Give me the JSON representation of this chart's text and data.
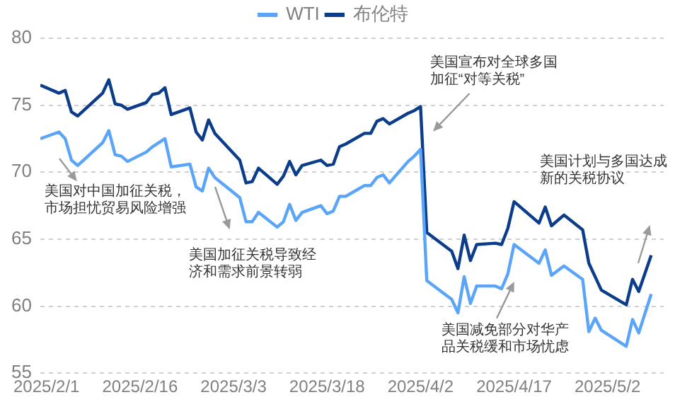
{
  "chart_data": {
    "type": "line",
    "x": [
      "2025-01-31",
      "2025-02-03",
      "2025-02-04",
      "2025-02-05",
      "2025-02-06",
      "2025-02-10",
      "2025-02-11",
      "2025-02-12",
      "2025-02-13",
      "2025-02-14",
      "2025-02-17",
      "2025-02-18",
      "2025-02-19",
      "2025-02-20",
      "2025-02-21",
      "2025-02-24",
      "2025-02-25",
      "2025-02-26",
      "2025-02-27",
      "2025-02-28",
      "2025-03-04",
      "2025-03-05",
      "2025-03-06",
      "2025-03-07",
      "2025-03-10",
      "2025-03-11",
      "2025-03-12",
      "2025-03-13",
      "2025-03-14",
      "2025-03-17",
      "2025-03-18",
      "2025-03-19",
      "2025-03-20",
      "2025-03-21",
      "2025-03-24",
      "2025-03-25",
      "2025-03-26",
      "2025-03-27",
      "2025-03-28",
      "2025-03-31",
      "2025-04-01",
      "2025-04-02",
      "2025-04-03",
      "2025-04-07",
      "2025-04-08",
      "2025-04-09",
      "2025-04-10",
      "2025-04-11",
      "2025-04-14",
      "2025-04-15",
      "2025-04-16",
      "2025-04-17",
      "2025-04-21",
      "2025-04-22",
      "2025-04-23",
      "2025-04-25",
      "2025-04-28",
      "2025-04-29",
      "2025-04-30",
      "2025-05-01",
      "2025-05-05",
      "2025-05-06",
      "2025-05-07",
      "2025-05-09"
    ],
    "series": [
      {
        "name": "WTI",
        "color": "#5aa5f7",
        "values": [
          72.5,
          73.0,
          72.5,
          70.9,
          70.5,
          72.2,
          73.1,
          71.3,
          71.2,
          70.8,
          71.5,
          71.9,
          72.2,
          72.5,
          70.4,
          70.6,
          68.9,
          68.6,
          70.3,
          69.6,
          68.1,
          66.3,
          66.3,
          67.0,
          65.9,
          66.3,
          67.6,
          66.4,
          67.0,
          67.5,
          66.9,
          67.1,
          68.2,
          68.2,
          69.0,
          69.0,
          69.6,
          69.8,
          69.2,
          70.8,
          71.2,
          71.7,
          61.9,
          60.5,
          59.5,
          62.2,
          60.2,
          61.5,
          61.5,
          61.3,
          62.4,
          64.6,
          63.2,
          64.2,
          62.3,
          63.0,
          62.0,
          58.1,
          59.1,
          58.2,
          57.0,
          59.0,
          58.0,
          60.9
        ]
      },
      {
        "name": "布伦特",
        "color": "#0c3d8a",
        "values": [
          76.5,
          75.9,
          76.1,
          74.5,
          74.2,
          75.9,
          76.9,
          75.1,
          75.0,
          74.7,
          75.2,
          75.8,
          75.9,
          76.3,
          74.3,
          74.8,
          73.0,
          72.4,
          73.9,
          72.9,
          70.9,
          69.2,
          69.3,
          70.3,
          69.1,
          69.7,
          70.8,
          69.8,
          70.5,
          70.9,
          70.5,
          70.6,
          71.9,
          72.1,
          72.9,
          72.9,
          73.8,
          74.0,
          73.6,
          74.4,
          74.6,
          74.9,
          65.5,
          64.1,
          62.8,
          65.3,
          63.4,
          64.6,
          64.7,
          64.6,
          65.8,
          67.8,
          66.2,
          67.4,
          66.0,
          66.8,
          65.7,
          63.2,
          62.2,
          61.2,
          60.1,
          62.0,
          61.1,
          63.8
        ]
      }
    ],
    "xlim": [
      "2025-01-31",
      "2025-05-11"
    ],
    "xticks": [
      {
        "value": "2025-02-01",
        "label": "2025/2/1"
      },
      {
        "value": "2025-02-16",
        "label": "2025/2/16"
      },
      {
        "value": "2025-03-03",
        "label": "2025/3/3"
      },
      {
        "value": "2025-03-18",
        "label": "2025/3/18"
      },
      {
        "value": "2025-04-02",
        "label": "2025/4/2"
      },
      {
        "value": "2025-04-17",
        "label": "2025/4/17"
      },
      {
        "value": "2025-05-02",
        "label": "2025/5/2"
      }
    ],
    "ylim": [
      55,
      80
    ],
    "yticks": [
      55,
      60,
      65,
      70,
      75,
      80
    ],
    "grid": "y",
    "legend": "top",
    "marker": "none",
    "line_style": "solid",
    "annotations": [
      "美国对中国加征关税，市场担忧贸易风险增强",
      "美国加征关税导致经济和需求前景转弱",
      "美国宣布对全球多国加征“对等关税”",
      "美国减免部分对华产品关税缓和市场忧虑",
      "美国计划与多国达成新的关税协议"
    ]
  }
}
